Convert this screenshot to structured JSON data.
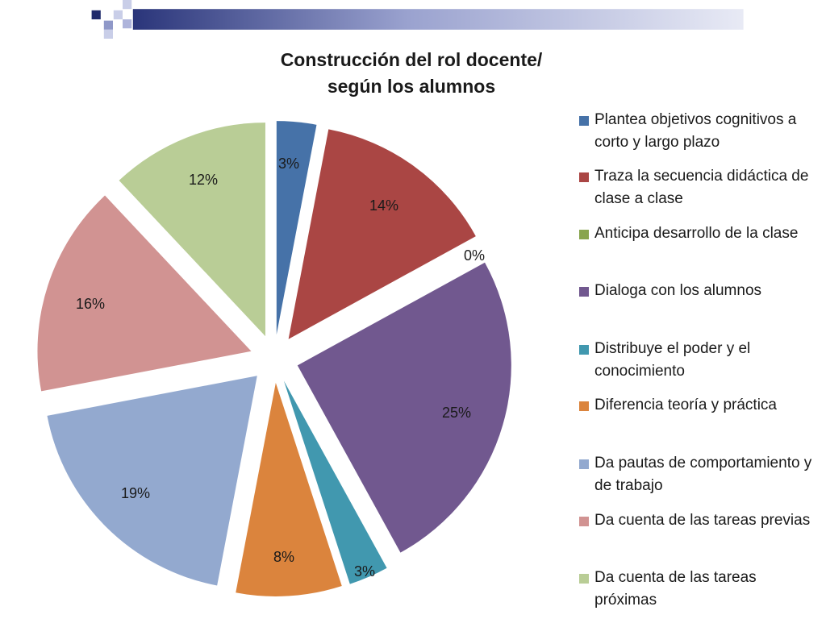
{
  "chart_data": {
    "type": "pie",
    "title_lines": [
      "Construcción del rol docente/",
      "según los alumnos"
    ],
    "legend_position": "right",
    "exploded": true,
    "slices": [
      {
        "name": "Plantea objetivos cognitivos a corto y largo plazo",
        "value": 3,
        "label": "3%",
        "color": "#4672A8"
      },
      {
        "name": "Traza la secuencia didáctica de clase a clase",
        "value": 14,
        "label": "14%",
        "color": "#AA4644"
      },
      {
        "name": "Anticipa desarrollo de la clase",
        "value": 0,
        "label": "0%",
        "color": "#89A54E"
      },
      {
        "name": "Dialoga con los alumnos",
        "value": 25,
        "label": "25%",
        "color": "#71588F"
      },
      {
        "name": "Distribuye el poder y el conocimiento",
        "value": 3,
        "label": "3%",
        "color": "#4198AF"
      },
      {
        "name": "Diferencia teoría y práctica",
        "value": 8,
        "label": "8%",
        "color": "#DB843D"
      },
      {
        "name": "Da pautas de comportamiento y de trabajo",
        "value": 19,
        "label": "19%",
        "color": "#93A9CF"
      },
      {
        "name": "Da cuenta de las tareas previas",
        "value": 16,
        "label": "16%",
        "color": "#D19392"
      },
      {
        "name": "Da cuenta de las tareas próximas",
        "value": 12,
        "label": "12%",
        "color": "#B9CD96"
      }
    ]
  },
  "colors": {
    "header_dark": "#1F2A6B",
    "header_mid": "#8F98C8",
    "header_light": "#DADEF0"
  }
}
